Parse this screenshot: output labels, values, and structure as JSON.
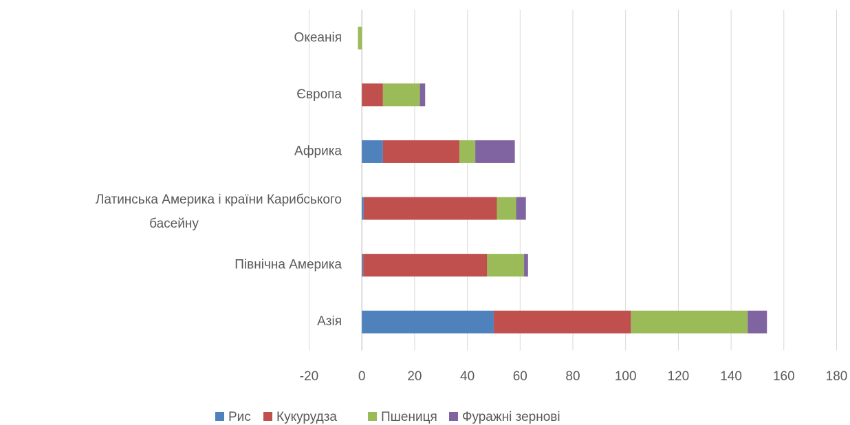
{
  "chart_data": {
    "type": "stacked_barh",
    "categories": [
      "Азія",
      "Північна Америка",
      "Латинська Америка і країни Карибського басейну",
      "Африка",
      "Європа",
      "Океанія"
    ],
    "series": [
      {
        "name": "Рис",
        "color": "#4f81bd",
        "values": [
          50,
          0.5,
          0.7,
          8,
          0,
          0
        ]
      },
      {
        "name": "Кукурудза",
        "color": "#c0504d",
        "values": [
          52,
          47,
          50.5,
          29,
          8,
          0
        ]
      },
      {
        "name": "Пшениця",
        "color": "#9bbb59",
        "values": [
          44.3,
          14,
          7.3,
          6,
          14,
          -1.5
        ]
      },
      {
        "name": "Фуражні зернові",
        "color": "#8064a2",
        "values": [
          7.3,
          1.5,
          3.7,
          15,
          2,
          0
        ]
      }
    ],
    "xlim": [
      -20,
      180
    ],
    "xticks": [
      -20,
      0,
      20,
      40,
      60,
      80,
      100,
      120,
      140,
      160,
      180
    ],
    "grid": true,
    "legend": "bottom"
  }
}
